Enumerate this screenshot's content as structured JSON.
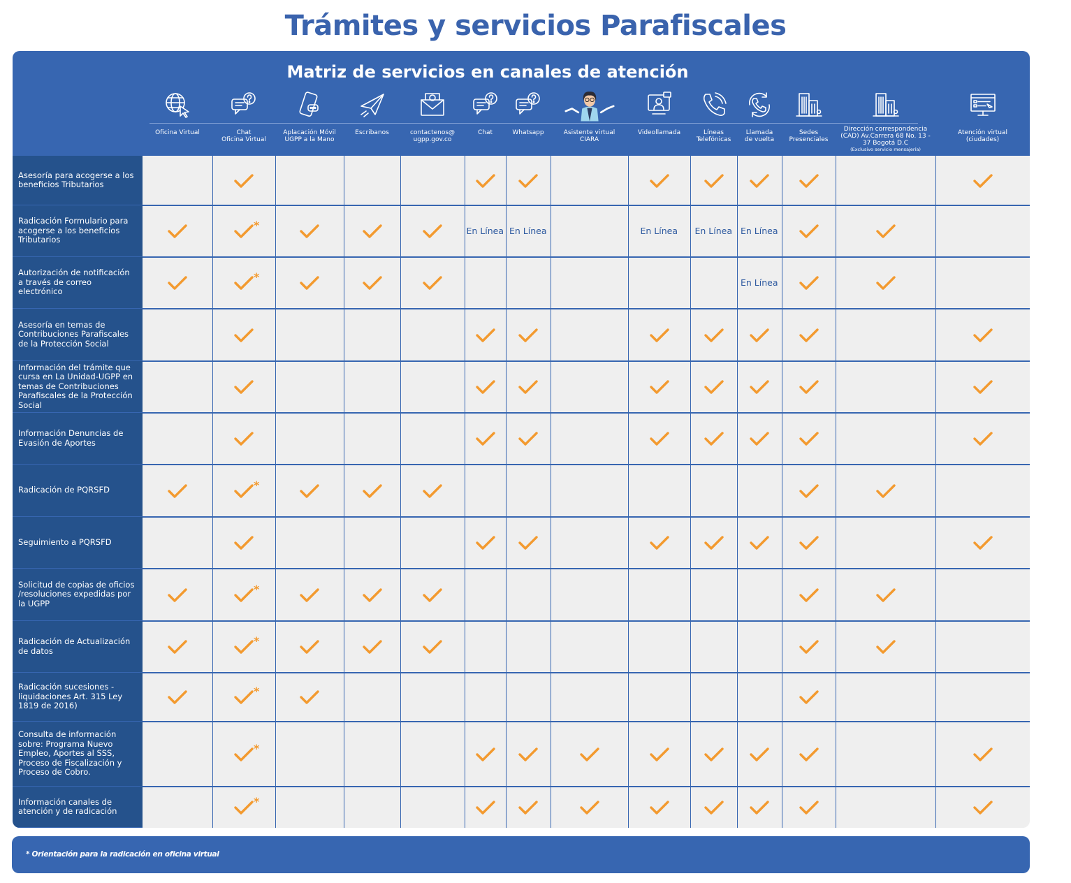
{
  "title": "Trámites y servicios Parafiscales",
  "matrix_title": "Matriz de servicios en canales de atención",
  "channels": [
    {
      "label": "Oficina Virtual",
      "icon": "globe-cursor-icon"
    },
    {
      "label": "Chat\nOficina Virtual",
      "icon": "chat-question-icon"
    },
    {
      "label": "Aplacación Móvil\nUGPP a la Mano",
      "icon": "mobile-app-icon"
    },
    {
      "label": "Escribanos",
      "icon": "paper-plane-icon"
    },
    {
      "label": "contactenos@\nugpp.gov.co",
      "icon": "email-icon"
    },
    {
      "label": "Chat",
      "icon": "chat-question-icon"
    },
    {
      "label": "Whatsapp",
      "icon": "chat-question-icon"
    },
    {
      "label": "Asistente virtual\nCIARA",
      "icon": "virtual-assistant-icon"
    },
    {
      "label": "Videollamada",
      "icon": "video-call-icon"
    },
    {
      "label": "Líneas\nTelefónicas",
      "icon": "phone-icon"
    },
    {
      "label": "Llamada\nde vuelta",
      "icon": "callback-phone-icon"
    },
    {
      "label": "Sedes\nPresenciales",
      "icon": "building-icon"
    },
    {
      "label": "Dirección correspondencia\n(CAD) Av.Carrera 68 No. 13 -\n37 Bogotá D.C",
      "note": "(Exclusivo servicio mensajería)",
      "icon": "building-icon"
    },
    {
      "label": "Atención virtual\n(ciudades)",
      "icon": "computer-screen-icon"
    }
  ],
  "rows": [
    {
      "label": "Asesoría para acogerse a los beneficios Tributarios",
      "cells": [
        "",
        "v",
        "",
        "",
        "",
        "v",
        "v",
        "",
        "v",
        "v",
        "v",
        "v",
        "",
        "v"
      ]
    },
    {
      "label": "Radicación Formulario para acogerse a los beneficios Tributarios",
      "cells": [
        "v",
        "v*",
        "v",
        "v",
        "v",
        "En Línea",
        "En Línea",
        "",
        "En Línea",
        "En Línea",
        "En Línea",
        "v",
        "v",
        ""
      ]
    },
    {
      "label": "Autorización de notificación a través de correo electrónico",
      "cells": [
        "v",
        "v*",
        "v",
        "v",
        "v",
        "",
        "",
        "",
        "",
        "",
        "En Línea",
        "v",
        "v",
        ""
      ]
    },
    {
      "label": "Asesoría en temas de Contribuciones Parafiscales de la Protección Social",
      "cells": [
        "",
        "v",
        "",
        "",
        "",
        "v",
        "v",
        "",
        "v",
        "v",
        "v",
        "v",
        "",
        "v"
      ]
    },
    {
      "label": "Información del trámite que cursa en La Unidad-UGPP en temas de  Contribuciones Parafiscales de la Protección Social",
      "cells": [
        "",
        "v",
        "",
        "",
        "",
        "v",
        "v",
        "",
        "v",
        "v",
        "v",
        "v",
        "",
        "v"
      ]
    },
    {
      "label": "Información Denuncias de Evasión de Aportes",
      "cells": [
        "",
        "v",
        "",
        "",
        "",
        "v",
        "v",
        "",
        "v",
        "v",
        "v",
        "v",
        "",
        "v"
      ]
    },
    {
      "label": "Radicación de PQRSFD",
      "cells": [
        "v",
        "v*",
        "v",
        "v",
        "v",
        "",
        "",
        "",
        "",
        "",
        "",
        "v",
        "v",
        ""
      ]
    },
    {
      "label": "Seguimiento a PQRSFD",
      "cells": [
        "",
        "v",
        "",
        "",
        "",
        "v",
        "v",
        "",
        "v",
        "v",
        "v",
        "v",
        "",
        "v"
      ]
    },
    {
      "label": "Solicitud de copias de oficios /resoluciones expedidas por la UGPP",
      "cells": [
        "v",
        "v*",
        "v",
        "v",
        "v",
        "",
        "",
        "",
        "",
        "",
        "",
        "v",
        "v",
        ""
      ]
    },
    {
      "label": "Radicación de Actualización de datos",
      "cells": [
        "v",
        "v*",
        "v",
        "v",
        "v",
        "",
        "",
        "",
        "",
        "",
        "",
        "v",
        "v",
        ""
      ]
    },
    {
      "label": "Radicación sucesiones -liquidaciones Art. 315 Ley 1819 de 2016)",
      "cells": [
        "v",
        "v*",
        "v",
        "",
        "",
        "",
        "",
        "",
        "",
        "",
        "",
        "v",
        "",
        ""
      ]
    },
    {
      "label": "Consulta de información sobre: Programa Nuevo Empleo, Aportes al SSS, Proceso de Fiscalización y Proceso de Cobro.",
      "cells": [
        "",
        "v*",
        "",
        "",
        "",
        "v",
        "v",
        "v",
        "v",
        "v",
        "v",
        "v",
        "",
        "v"
      ]
    },
    {
      "label": "Información canales de atención y de radicación",
      "cells": [
        "",
        "v*",
        "",
        "",
        "",
        "v",
        "v",
        "v",
        "v",
        "v",
        "v",
        "v",
        "",
        "v"
      ]
    }
  ],
  "footnote": "* Orientación para la radicación en oficina virtual",
  "colors": {
    "accent": "#3766b1",
    "label_bg": "#25528c",
    "check": "#f39a2f",
    "cell_bg": "#efefef"
  }
}
